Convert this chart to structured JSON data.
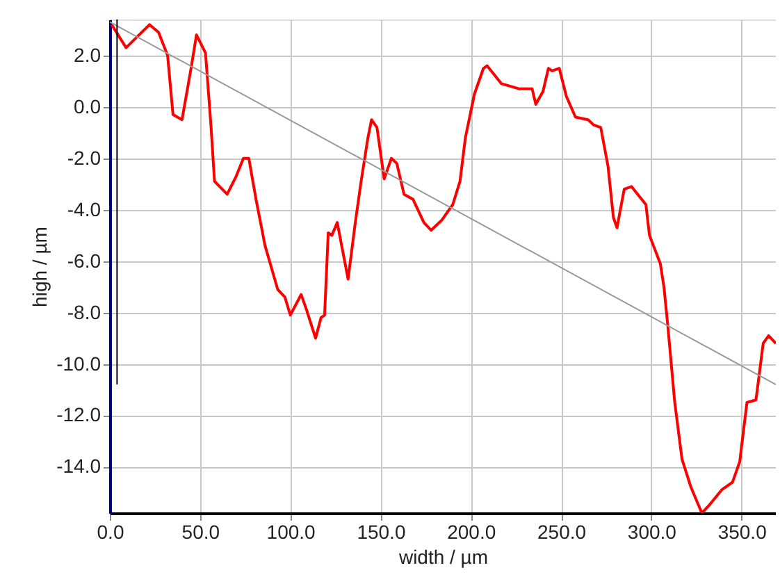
{
  "chart_data": {
    "type": "line",
    "xlabel": "width / µm",
    "ylabel": "high / µm",
    "xlim": [
      0,
      369
    ],
    "ylim": [
      -15.8,
      3.4
    ],
    "xticks": [
      {
        "value": 0,
        "label": "0.0"
      },
      {
        "value": 50,
        "label": "50.0"
      },
      {
        "value": 100,
        "label": "100.0"
      },
      {
        "value": 150,
        "label": "150.0"
      },
      {
        "value": 200,
        "label": "200.0"
      },
      {
        "value": 250,
        "label": "250.0"
      },
      {
        "value": 300,
        "label": "300.0"
      },
      {
        "value": 350,
        "label": "350.0"
      }
    ],
    "yticks": [
      {
        "value": 2,
        "label": "2.0"
      },
      {
        "value": 0,
        "label": "0.0"
      },
      {
        "value": -2,
        "label": "-2.0"
      },
      {
        "value": -4,
        "label": "-4.0"
      },
      {
        "value": -6,
        "label": "-6.0"
      },
      {
        "value": -8,
        "label": "-8.0"
      },
      {
        "value": -10,
        "label": "-10.0"
      },
      {
        "value": -12,
        "label": "-12.0"
      },
      {
        "value": -14,
        "label": "-14.0"
      }
    ],
    "grid": true,
    "marker": "none",
    "line_style": "solid",
    "series": [
      {
        "color": "#ff0000",
        "x": [
          1,
          9,
          22,
          27,
          32,
          35,
          40,
          45,
          48,
          53,
          56,
          58,
          65,
          70,
          74,
          77,
          81,
          86,
          93,
          97,
          100,
          106,
          109,
          114,
          117,
          119,
          121,
          123,
          126,
          132,
          136,
          139,
          143,
          145,
          148,
          152,
          156,
          159,
          163,
          168,
          174,
          178,
          184,
          190,
          194,
          197,
          202,
          207,
          209,
          217,
          222,
          227,
          234,
          236,
          240,
          243,
          245,
          249,
          253,
          258,
          265,
          268,
          272,
          276,
          279,
          281,
          285,
          289,
          297,
          299,
          305,
          307,
          309,
          313,
          317,
          322,
          328,
          332,
          339,
          345,
          349,
          353,
          358,
          362,
          365,
          369
        ],
        "values": [
          3.2,
          2.3,
          3.2,
          2.9,
          2.0,
          -0.3,
          -0.5,
          1.5,
          2.8,
          2.1,
          -0.7,
          -2.9,
          -3.4,
          -2.7,
          -2.0,
          -2.0,
          -3.6,
          -5.4,
          -7.1,
          -7.4,
          -8.1,
          -7.3,
          -7.9,
          -9.0,
          -8.2,
          -8.1,
          -4.9,
          -5.0,
          -4.5,
          -6.7,
          -4.5,
          -3.0,
          -1.2,
          -0.5,
          -0.8,
          -2.8,
          -2.0,
          -2.2,
          -3.4,
          -3.6,
          -4.5,
          -4.8,
          -4.4,
          -3.8,
          -2.9,
          -1.2,
          0.5,
          1.5,
          1.6,
          0.9,
          0.8,
          0.7,
          0.7,
          0.1,
          0.6,
          1.5,
          1.4,
          1.5,
          0.4,
          -0.4,
          -0.5,
          -0.7,
          -0.8,
          -2.3,
          -4.3,
          -4.7,
          -3.2,
          -3.1,
          -3.8,
          -5.0,
          -6.1,
          -7.0,
          -8.4,
          -11.5,
          -13.7,
          -14.8,
          -15.8,
          -15.5,
          -14.9,
          -14.6,
          -13.8,
          -11.5,
          -11.4,
          -9.2,
          -8.9,
          -9.2
        ]
      },
      {
        "color": "#999999",
        "x": [
          0,
          369
        ],
        "values": [
          3.3,
          -10.8
        ]
      },
      {
        "color": "#000000",
        "x": [
          4,
          4
        ],
        "values": [
          3.4,
          -10.8
        ]
      }
    ]
  }
}
